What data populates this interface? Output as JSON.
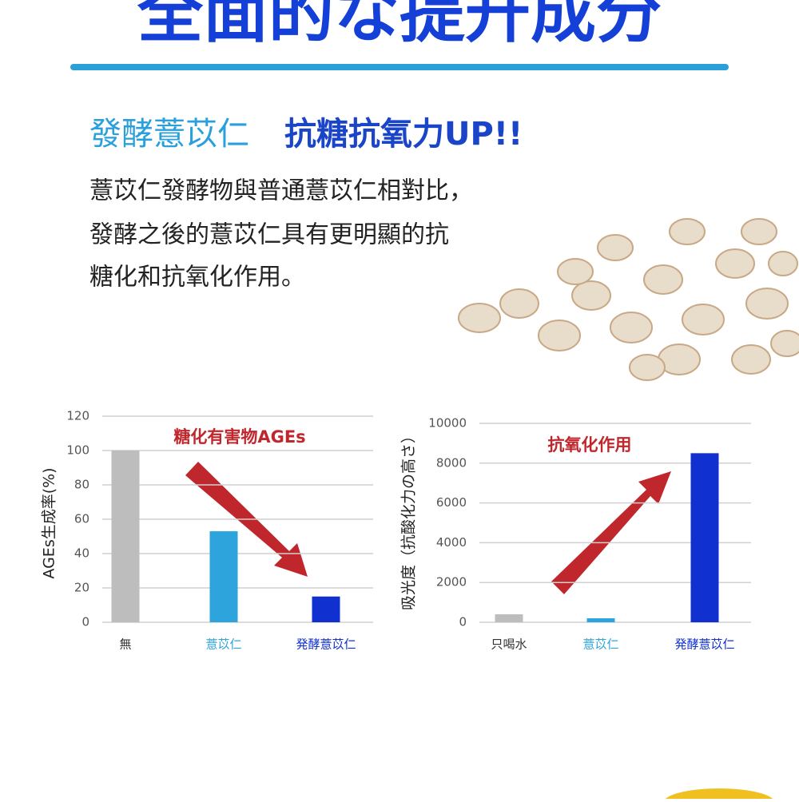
{
  "header": {
    "title": "全面的な提升成分"
  },
  "intro": {
    "subtitle_lead": "發酵薏苡仁",
    "subtitle_emphasis": "抗糖抗氧力UP!!",
    "lines": [
      "薏苡仁發酵物與普通薏苡仁相對比，",
      "發酵之後的薏苡仁具有更明顯的抗",
      "糖化和抗氧化作用。"
    ]
  },
  "chart_data": [
    {
      "type": "bar",
      "annotation": "糖化有害物AGEs",
      "ylabel": "AGEs生成率(%)",
      "categories": [
        "無",
        "薏苡仁",
        "発酵薏苡仁"
      ],
      "values": [
        100,
        53,
        15
      ],
      "colors": [
        "#bdbdbd",
        "#2ea4dc",
        "#1030d0"
      ],
      "category_colors": [
        "#333333",
        "#2ea4dc",
        "#1030d0"
      ],
      "ylim": [
        0,
        120
      ],
      "yticks": [
        0,
        20,
        40,
        60,
        80,
        100,
        120
      ],
      "grid": true
    },
    {
      "type": "bar",
      "annotation": "抗氧化作用",
      "ylabel": "吸光度（抗酸化力の高さ）",
      "categories": [
        "只喝水",
        "薏苡仁",
        "発酵薏苡仁"
      ],
      "values": [
        400,
        200,
        8500
      ],
      "colors": [
        "#bdbdbd",
        "#2ea4dc",
        "#1030d0"
      ],
      "category_colors": [
        "#333333",
        "#2ea4dc",
        "#1030d0"
      ],
      "ylim": [
        0,
        10000
      ],
      "yticks": [
        0,
        2000,
        4000,
        6000,
        8000,
        10000
      ],
      "grid": true
    }
  ]
}
